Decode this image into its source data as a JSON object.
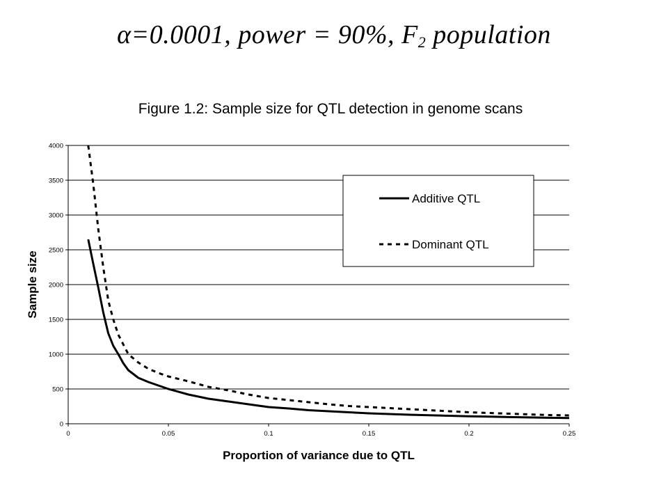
{
  "slide": {
    "alpha_symbol": "α",
    "title_main": "=0.0001, power = 90%, F",
    "title_subscript": "2",
    "title_tail": " population"
  },
  "chart_data": {
    "type": "line",
    "title": "Figure 1.2: Sample size for QTL detection in genome scans",
    "xlabel": "Proportion of variance due to QTL",
    "ylabel": "Sample size",
    "xlim": [
      0,
      0.25
    ],
    "ylim": [
      0,
      4000
    ],
    "x_ticks": [
      0,
      0.05,
      0.1,
      0.15,
      0.2,
      0.25
    ],
    "x_tick_labels": [
      "0",
      "0.05",
      "0.1",
      "0.15",
      "0.2",
      "0.25"
    ],
    "y_ticks": [
      0,
      500,
      1000,
      1500,
      2000,
      2500,
      3000,
      3500,
      4000
    ],
    "y_tick_labels": [
      "0",
      "500",
      "1000",
      "1500",
      "2000",
      "2500",
      "3000",
      "3500",
      "4000"
    ],
    "grid": "horizontal",
    "legend_position": "top-right",
    "series": [
      {
        "name": "Additive QTL",
        "style": "solid",
        "color": "#000000",
        "x": [
          0.01,
          0.0125,
          0.015,
          0.0175,
          0.02,
          0.0225,
          0.025,
          0.0275,
          0.03,
          0.035,
          0.04,
          0.045,
          0.05,
          0.06,
          0.07,
          0.08,
          0.09,
          0.1,
          0.11,
          0.12,
          0.13,
          0.14,
          0.15,
          0.16,
          0.17,
          0.18,
          0.19,
          0.2,
          0.21,
          0.22,
          0.23,
          0.24,
          0.25
        ],
        "y": [
          2650,
          2300,
          1960,
          1600,
          1300,
          1120,
          1000,
          870,
          770,
          660,
          600,
          550,
          500,
          420,
          360,
          320,
          280,
          240,
          220,
          195,
          180,
          165,
          150,
          140,
          130,
          122,
          115,
          108,
          102,
          96,
          91,
          86,
          82
        ]
      },
      {
        "name": "Dominant QTL",
        "style": "dashed",
        "color": "#000000",
        "x": [
          0.01,
          0.0125,
          0.015,
          0.0175,
          0.02,
          0.0225,
          0.025,
          0.0275,
          0.03,
          0.035,
          0.04,
          0.045,
          0.05,
          0.06,
          0.07,
          0.08,
          0.09,
          0.1,
          0.11,
          0.12,
          0.13,
          0.14,
          0.15,
          0.16,
          0.17,
          0.18,
          0.19,
          0.2,
          0.21,
          0.22,
          0.23,
          0.24,
          0.25
        ],
        "y": [
          4000,
          3450,
          2800,
          2250,
          1770,
          1500,
          1280,
          1140,
          1000,
          880,
          790,
          730,
          680,
          610,
          530,
          480,
          420,
          370,
          340,
          310,
          280,
          255,
          240,
          225,
          210,
          195,
          180,
          165,
          155,
          145,
          135,
          125,
          120
        ]
      }
    ]
  }
}
